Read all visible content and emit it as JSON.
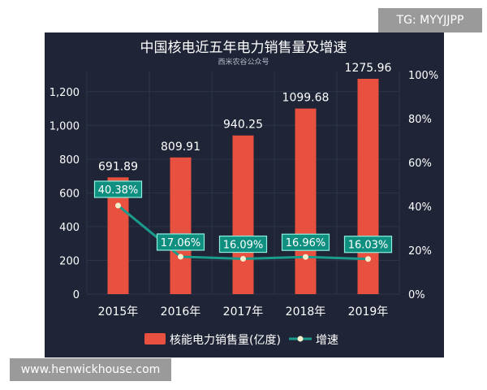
{
  "watermark_top": "TG: MYYJJPP",
  "watermark_bottom": "www.henwickhouse.com",
  "colors": {
    "panel_bg": "#1f2537",
    "bar": "#e8503f",
    "line": "#1a9c8c",
    "label_box": "#0e8f80",
    "label_border": "#8ff0df",
    "dot": "#f3eecb"
  },
  "chart_data": {
    "type": "bar",
    "title": "中国核电近五年电力销售量及增速",
    "subtitle": "西米农谷公众号",
    "categories": [
      "2015年",
      "2016年",
      "2017年",
      "2018年",
      "2019年"
    ],
    "series": [
      {
        "name": "核能电力销售量(亿度)",
        "type": "bar",
        "axis": "left",
        "values": [
          691.89,
          809.91,
          940.25,
          1099.68,
          1275.96
        ],
        "labels": [
          "691.89",
          "809.91",
          "940.25",
          "1099.68",
          "1275.96"
        ]
      },
      {
        "name": "增速",
        "type": "line",
        "axis": "right",
        "values": [
          40.38,
          17.06,
          16.09,
          16.96,
          16.03
        ],
        "labels": [
          "40.38%",
          "17.06%",
          "16.09%",
          "16.96%",
          "16.03%"
        ]
      }
    ],
    "left_axis": {
      "ylim": [
        0,
        1300
      ],
      "ticks": [
        0,
        200,
        400,
        600,
        800,
        1000,
        1200
      ],
      "tick_labels": [
        "0",
        "200",
        "400",
        "600",
        "800",
        "1,000",
        "1,200"
      ]
    },
    "right_axis": {
      "ylim": [
        0,
        100
      ],
      "ticks": [
        0,
        20,
        40,
        60,
        80,
        100
      ],
      "tick_labels": [
        "0%",
        "20%",
        "40%",
        "60%",
        "80%",
        "100%"
      ]
    },
    "grid": true,
    "legend_position": "bottom"
  }
}
